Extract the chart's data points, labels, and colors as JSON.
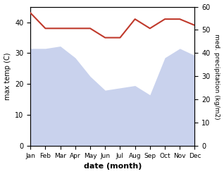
{
  "months": [
    "Jan",
    "Feb",
    "Mar",
    "Apr",
    "May",
    "Jun",
    "Jul",
    "Aug",
    "Sep",
    "Oct",
    "Nov",
    "Dec"
  ],
  "max_temp": [
    43,
    38,
    38,
    38,
    38,
    35,
    35,
    41,
    38,
    41,
    41,
    39
  ],
  "precipitation": [
    42,
    42,
    43,
    38,
    30,
    24,
    25,
    26,
    22,
    38,
    42,
    39
  ],
  "temp_color": "#c0392b",
  "precip_fill_color": "#b8c4e8",
  "precip_fill_alpha": 0.75,
  "xlabel": "date (month)",
  "ylabel_left": "max temp (C)",
  "ylabel_right": "med. precipitation (kg/m2)",
  "ylim_left": [
    0,
    45
  ],
  "ylim_right": [
    0,
    60
  ],
  "yticks_left": [
    0,
    10,
    20,
    30,
    40
  ],
  "yticks_right": [
    0,
    10,
    20,
    30,
    40,
    50,
    60
  ],
  "precip_scale": 0.75,
  "bg_color": "#ffffff"
}
